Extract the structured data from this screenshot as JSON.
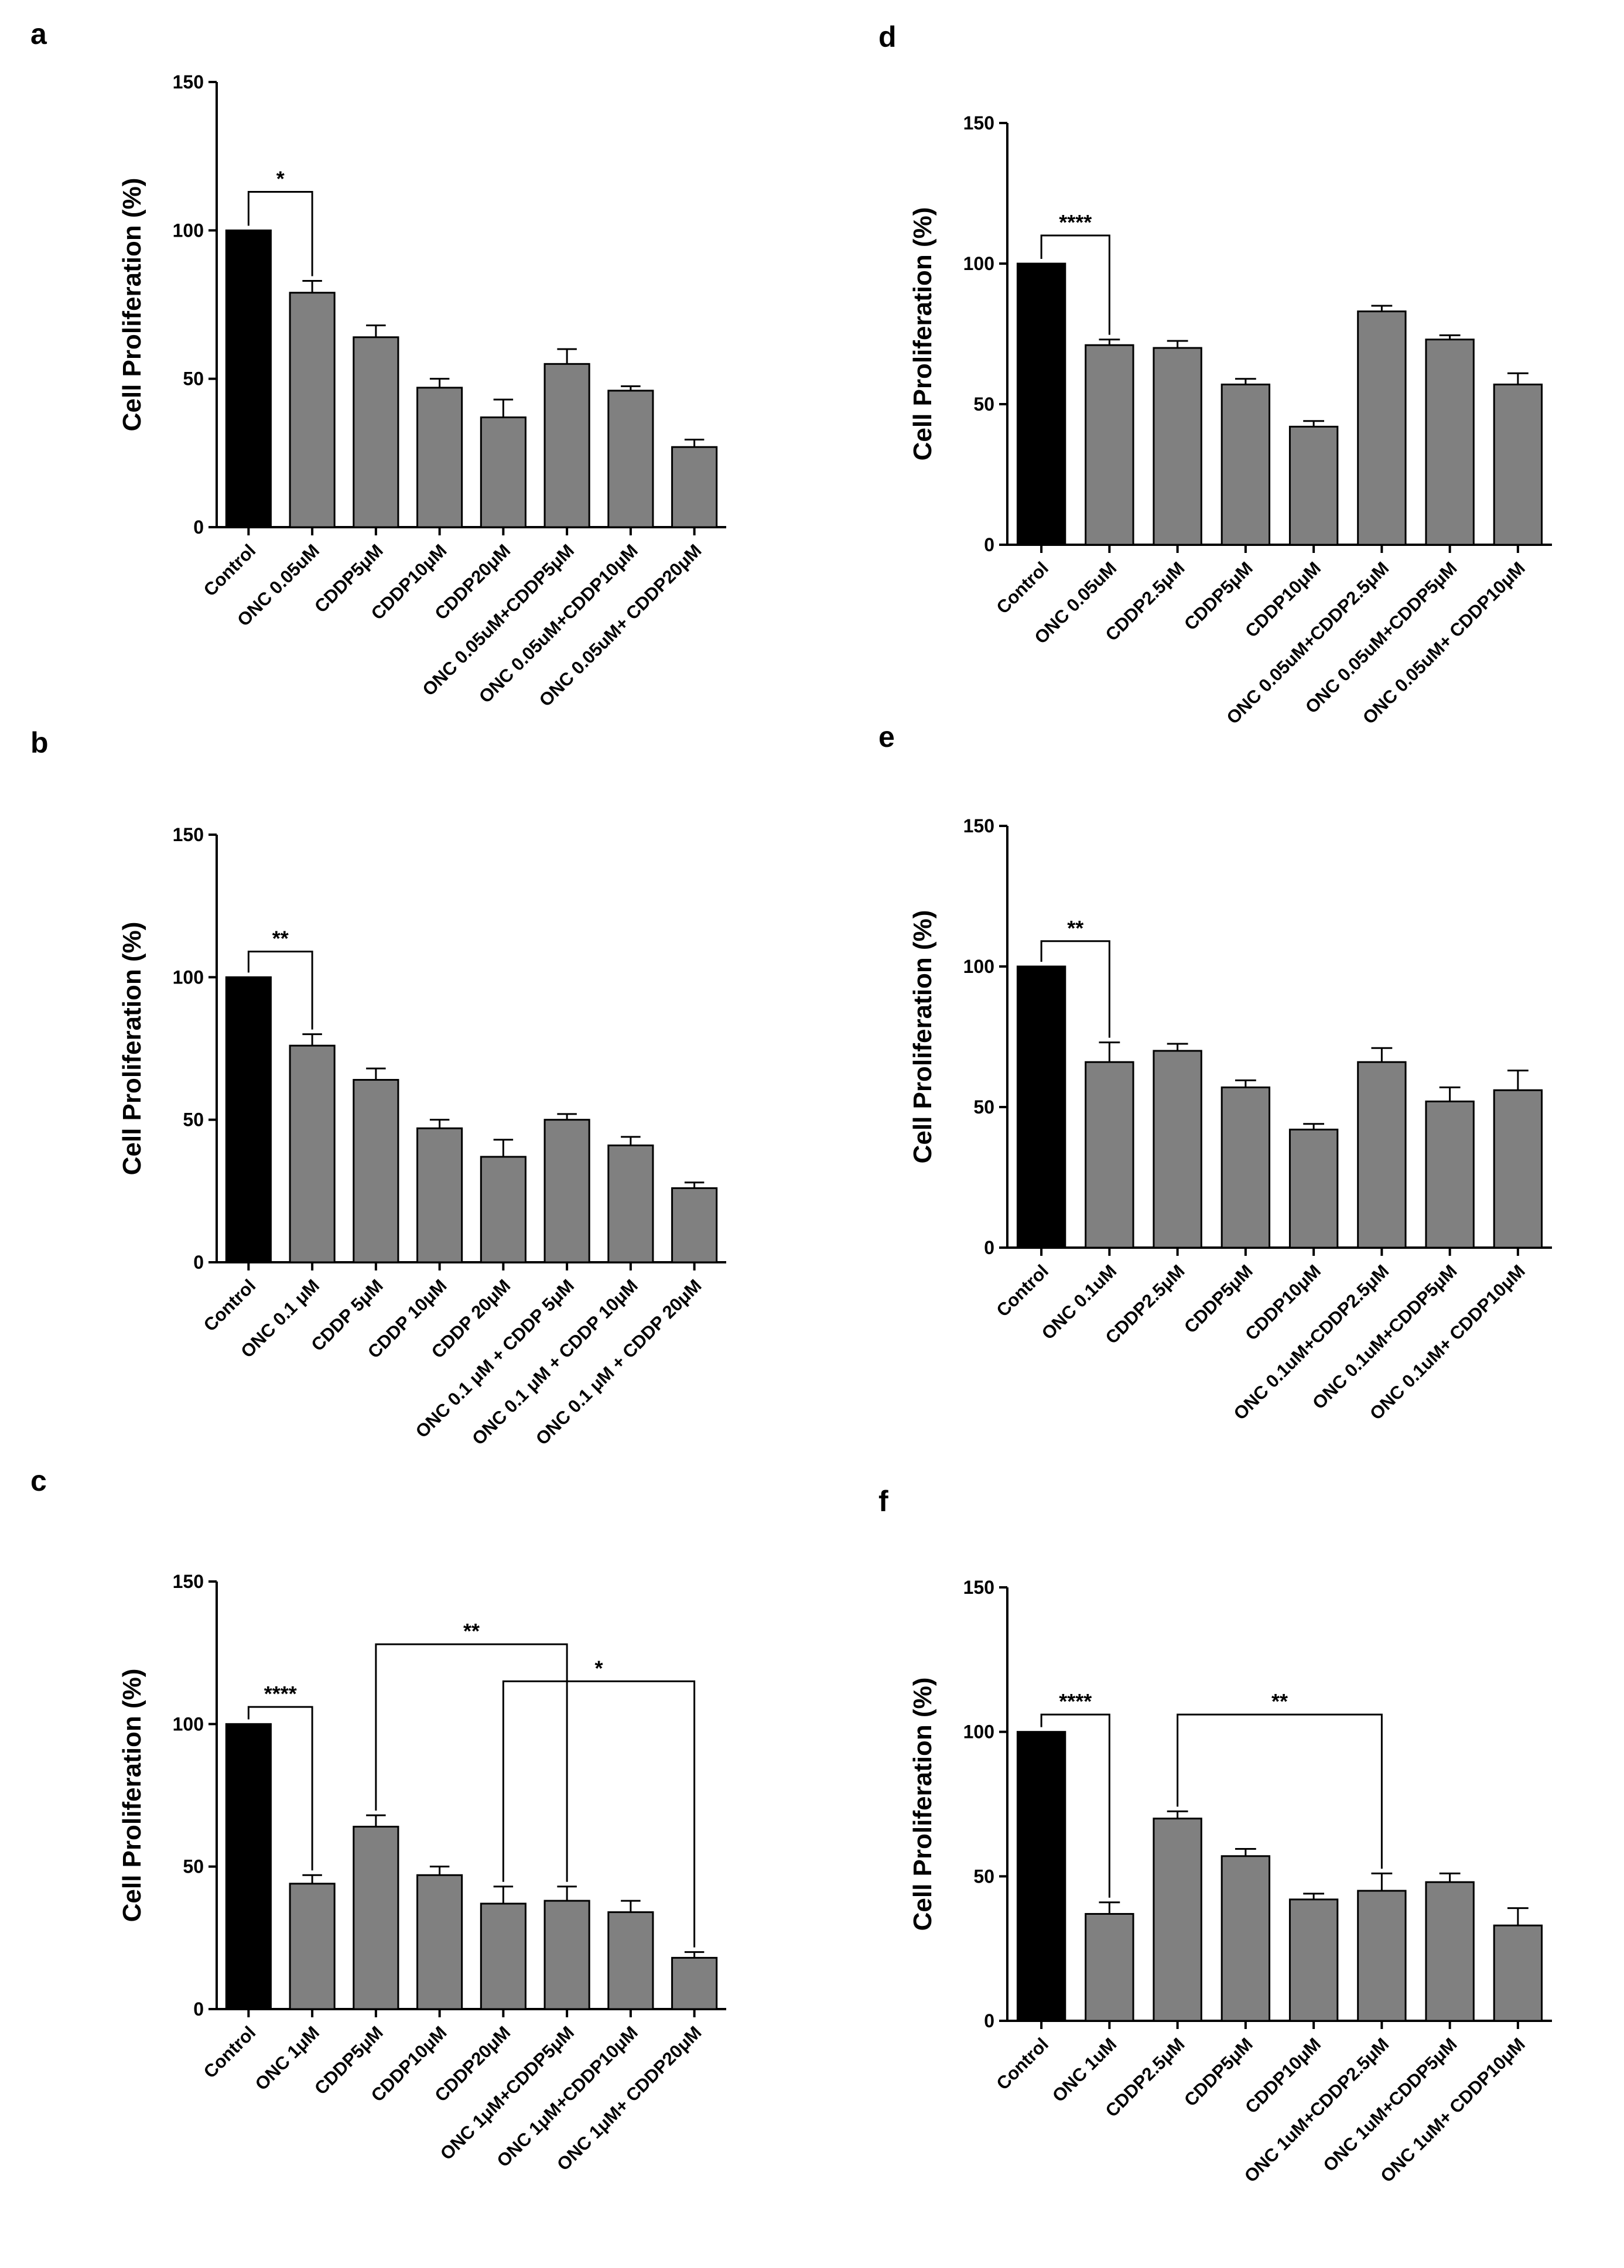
{
  "figure": {
    "bar_colors": {
      "control": "#000000",
      "treatment": "#808080",
      "edge": "#000000"
    }
  },
  "chart_data": [
    {
      "panel": "a",
      "type": "bar",
      "ylabel": "Cell Proliferation (%)",
      "ylim": [
        0,
        150
      ],
      "yticks": [
        "0",
        "50",
        "100",
        "150"
      ],
      "categories": [
        "Control",
        "ONC 0.05uM",
        "CDDP5μM",
        "CDDP10μM",
        "CDDP20μM",
        "ONC 0.05uM+CDDP5μM",
        "ONC 0.05uM+CDDP10μM",
        "ONC 0.05uM+ CDDP20μM"
      ],
      "values": [
        100,
        79,
        64,
        47,
        37,
        55,
        46,
        27
      ],
      "errors": [
        0,
        4,
        4,
        3,
        6,
        5,
        1.5,
        2.5
      ],
      "significance": [
        {
          "from": 0,
          "to": 1,
          "label": "*",
          "level": 113
        }
      ]
    },
    {
      "panel": "b",
      "type": "bar",
      "ylabel": "Cell Proliferation (%)",
      "ylim": [
        0,
        150
      ],
      "yticks": [
        "0",
        "50",
        "100",
        "150"
      ],
      "categories": [
        "Control",
        "ONC 0.1 μM",
        "CDDP 5μM",
        "CDDP 10μM",
        "CDDP 20μM",
        "ONC 0.1 μM + CDDP 5μM",
        "ONC 0.1 μM + CDDP 10μM",
        "ONC 0.1 μM + CDDP 20μM"
      ],
      "values": [
        100,
        76,
        64,
        47,
        37,
        50,
        41,
        26
      ],
      "errors": [
        0,
        4,
        4,
        3,
        6,
        2,
        3,
        2
      ],
      "significance": [
        {
          "from": 0,
          "to": 1,
          "label": "**",
          "level": 109
        }
      ]
    },
    {
      "panel": "c",
      "type": "bar",
      "ylabel": "Cell Proliferation (%)",
      "ylim": [
        0,
        150
      ],
      "yticks": [
        "0",
        "50",
        "100",
        "150"
      ],
      "categories": [
        "Control",
        "ONC 1μM",
        "CDDP5μM",
        "CDDP10μM",
        "CDDP20μM",
        "ONC 1μM+CDDP5μM",
        "ONC 1μM+CDDP10μM",
        "ONC 1μM+ CDDP20μM"
      ],
      "values": [
        100,
        44,
        64,
        47,
        37,
        38,
        34,
        18
      ],
      "errors": [
        0,
        3,
        4,
        3,
        6,
        5,
        4,
        2
      ],
      "significance": [
        {
          "from": 0,
          "to": 1,
          "label": "****",
          "level": 106
        },
        {
          "from": 2,
          "to": 5,
          "label": "**",
          "level": 128
        },
        {
          "from": 4,
          "to": 7,
          "label": "*",
          "level": 115
        }
      ]
    },
    {
      "panel": "d",
      "type": "bar",
      "ylabel": "Cell Proliferation (%)",
      "ylim": [
        0,
        150
      ],
      "yticks": [
        "0",
        "50",
        "100",
        "150"
      ],
      "categories": [
        "Control",
        "ONC 0.05uM",
        "CDDP2.5μM",
        "CDDP5μM",
        "CDDP10μM",
        "ONC 0.05uM+CDDP2.5μM",
        "ONC 0.05uM+CDDP5μM",
        "ONC 0.05uM+ CDDP10μM"
      ],
      "values": [
        100,
        71,
        70,
        57,
        42,
        83,
        73,
        57
      ],
      "errors": [
        0,
        2,
        2.5,
        2,
        2,
        2,
        1.5,
        4
      ],
      "significance": [
        {
          "from": 0,
          "to": 1,
          "label": "****",
          "level": 110
        }
      ]
    },
    {
      "panel": "e",
      "type": "bar",
      "ylabel": "Cell Proliferation (%)",
      "ylim": [
        0,
        150
      ],
      "yticks": [
        "0",
        "50",
        "100",
        "150"
      ],
      "categories": [
        "Control",
        "ONC 0.1uM",
        "CDDP2.5μM",
        "CDDP5μM",
        "CDDP10μM",
        "ONC 0.1uM+CDDP2.5μM",
        "ONC 0.1uM+CDDP5μM",
        "ONC 0.1uM+ CDDP10μM"
      ],
      "values": [
        100,
        66,
        70,
        57,
        42,
        66,
        52,
        56
      ],
      "errors": [
        0,
        7,
        2.5,
        2.5,
        2,
        5,
        5,
        7
      ],
      "significance": [
        {
          "from": 0,
          "to": 1,
          "label": "**",
          "level": 109
        }
      ]
    },
    {
      "panel": "f",
      "type": "bar",
      "ylabel": "Cell Proliferation (%)",
      "ylim": [
        0,
        150
      ],
      "yticks": [
        "0",
        "50",
        "100",
        "150"
      ],
      "categories": [
        "Control",
        "ONC 1uM",
        "CDDP2.5μM",
        "CDDP5μM",
        "CDDP10μM",
        "ONC 1uM+CDDP2.5μM",
        "ONC 1uM+CDDP5μM",
        "ONC 1uM+ CDDP10μM"
      ],
      "values": [
        100,
        37,
        70,
        57,
        42,
        45,
        48,
        33
      ],
      "errors": [
        0,
        4,
        2.5,
        2.5,
        2,
        6,
        3,
        6
      ],
      "significance": [
        {
          "from": 0,
          "to": 1,
          "label": "****",
          "level": 106
        },
        {
          "from": 2,
          "to": 5,
          "label": "**",
          "level": 106
        }
      ]
    }
  ]
}
